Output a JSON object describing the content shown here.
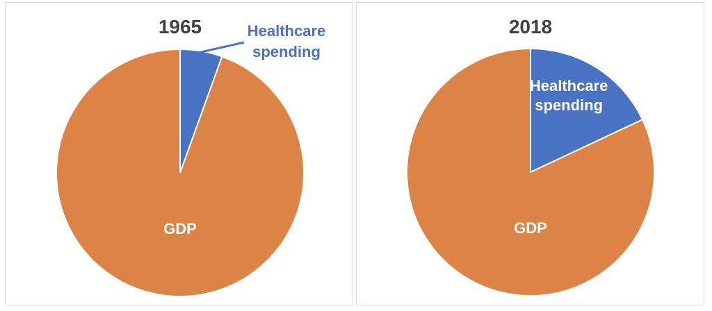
{
  "colors": {
    "gdp": "#DD8345",
    "healthcare": "#4A72C3",
    "title": "#404040",
    "label_inside": "#FFFFFF",
    "border": "#D9D9D9"
  },
  "chart_data": [
    {
      "type": "pie",
      "title": "1965",
      "categories": [
        "Healthcare spending",
        "GDP"
      ],
      "values": [
        5.5,
        94.5
      ],
      "label_lines": [
        [
          "Healthcare",
          "spending"
        ],
        [
          "GDP"
        ]
      ],
      "healthcare_label_placement": "outside-top-right"
    },
    {
      "type": "pie",
      "title": "2018",
      "categories": [
        "Healthcare spending",
        "GDP"
      ],
      "values": [
        18,
        82
      ],
      "label_lines": [
        [
          "Healthcare",
          "spending"
        ],
        [
          "GDP"
        ]
      ],
      "healthcare_label_placement": "inside"
    }
  ]
}
